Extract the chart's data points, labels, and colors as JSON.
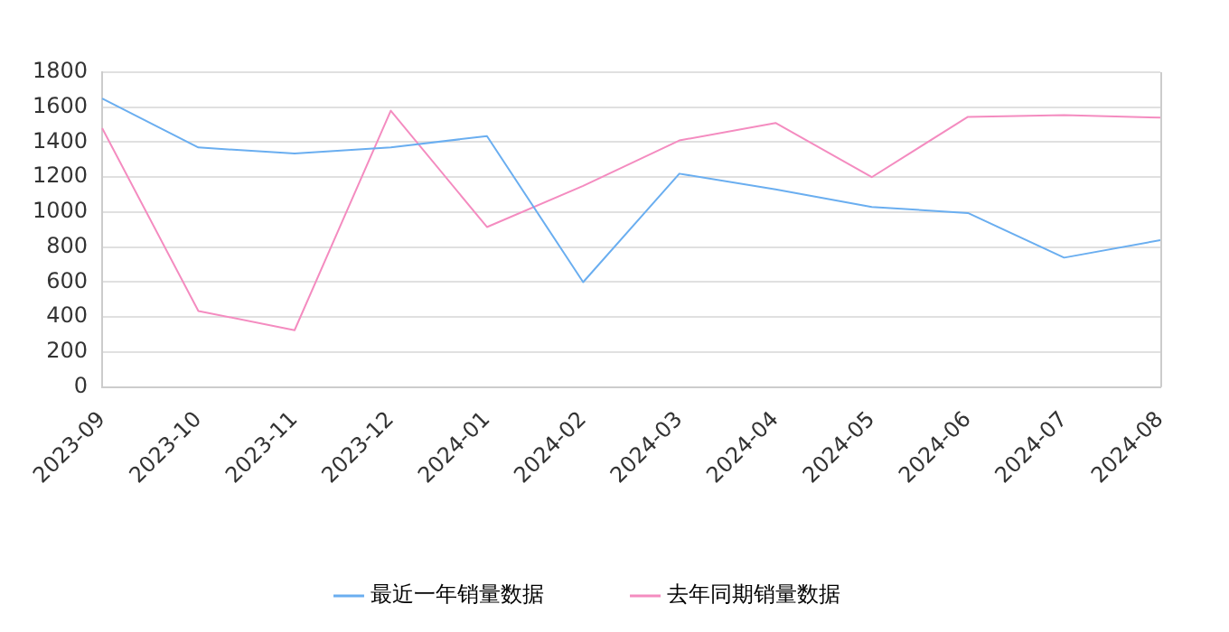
{
  "chart_data": {
    "type": "line",
    "categories": [
      "2023-09",
      "2023-10",
      "2023-11",
      "2023-12",
      "2024-01",
      "2024-02",
      "2024-03",
      "2024-04",
      "2024-05",
      "2024-06",
      "2024-07",
      "2024-08"
    ],
    "series": [
      {
        "name": "最近一年销量数据",
        "color": "#6aaef0",
        "values": [
          1650,
          1370,
          1335,
          1370,
          1435,
          600,
          1220,
          1130,
          1030,
          995,
          740,
          840
        ]
      },
      {
        "name": "去年同期销量数据",
        "color": "#f48cc0",
        "values": [
          1480,
          435,
          325,
          1580,
          915,
          1150,
          1410,
          1510,
          1200,
          1545,
          1555,
          1540
        ]
      }
    ],
    "ylim": [
      0,
      1800
    ],
    "yticks": [
      0,
      200,
      400,
      600,
      800,
      1000,
      1200,
      1400,
      1600,
      1800
    ],
    "grid": "y",
    "legend": "bottom",
    "marker": "none",
    "line_style": "solid"
  }
}
